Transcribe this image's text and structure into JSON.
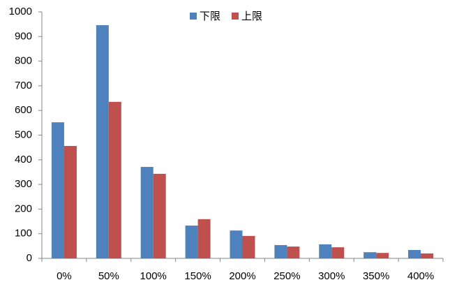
{
  "chart_data": {
    "type": "bar",
    "categories": [
      "0%",
      "50%",
      "100%",
      "150%",
      "200%",
      "250%",
      "300%",
      "350%",
      "400%"
    ],
    "series": [
      {
        "name": "下限",
        "color": "#4f81bd",
        "values": [
          552,
          946,
          371,
          133,
          113,
          54,
          57,
          25,
          34
        ]
      },
      {
        "name": "上限",
        "color": "#c0504d",
        "values": [
          456,
          635,
          343,
          159,
          91,
          48,
          45,
          22,
          20
        ]
      }
    ],
    "ylim": [
      0,
      1000
    ],
    "yticks": [
      0,
      100,
      200,
      300,
      400,
      500,
      600,
      700,
      800,
      900,
      1000
    ],
    "grid": false,
    "legend": "top"
  }
}
